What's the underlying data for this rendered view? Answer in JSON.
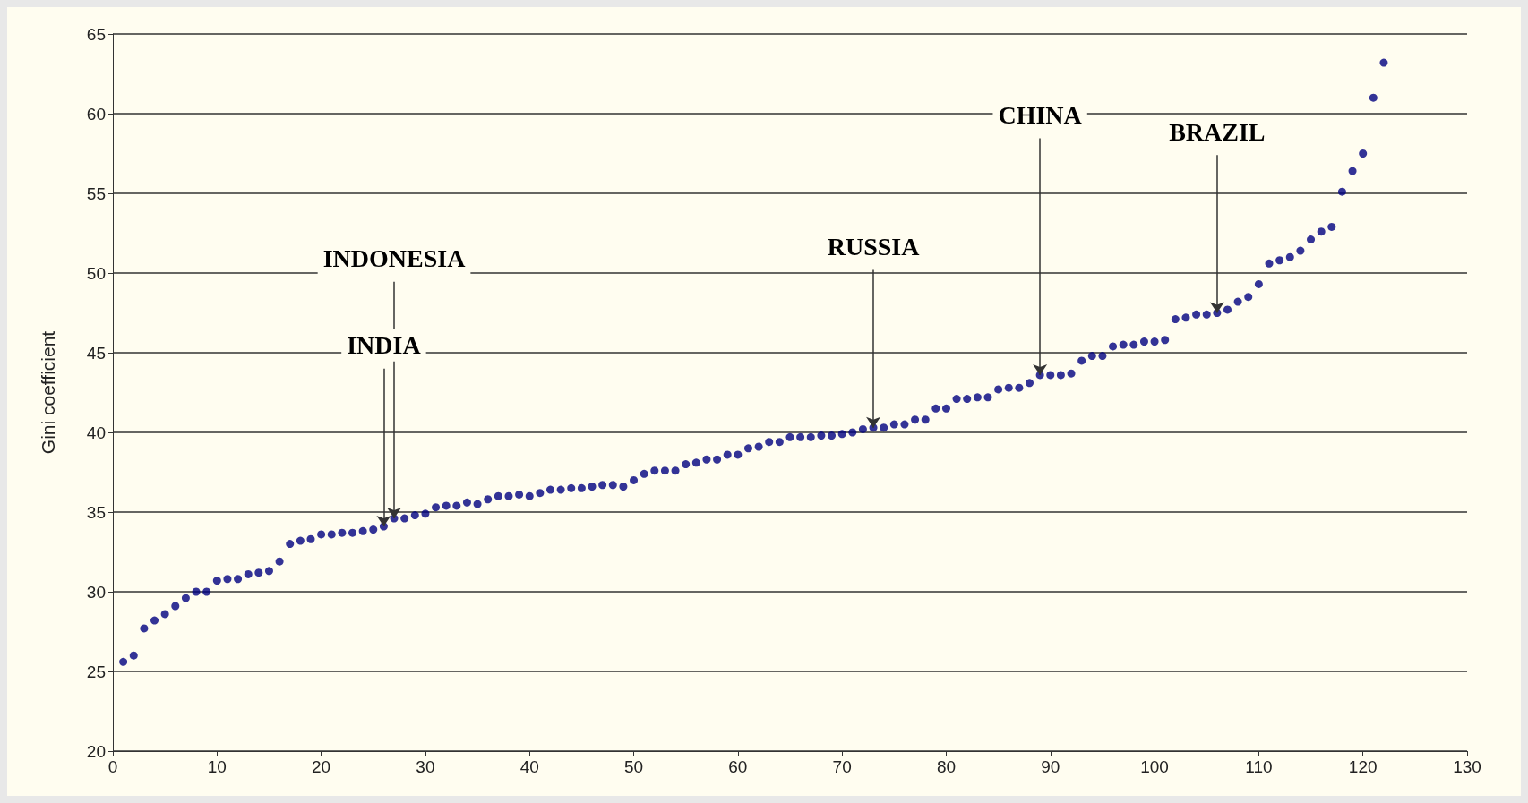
{
  "chart_data": {
    "type": "scatter",
    "ylabel": "Gini coefficient",
    "marker": "circle",
    "grid": "y",
    "xlim": [
      0,
      130
    ],
    "xticks": [
      0,
      10,
      20,
      30,
      40,
      50,
      60,
      70,
      80,
      90,
      100,
      110,
      120,
      130
    ],
    "ylim": [
      20,
      65
    ],
    "yticks": [
      20,
      25,
      30,
      35,
      40,
      45,
      50,
      55,
      60,
      65
    ],
    "x": [
      1,
      2,
      3,
      4,
      5,
      6,
      7,
      8,
      9,
      10,
      11,
      12,
      13,
      14,
      15,
      16,
      17,
      18,
      19,
      20,
      21,
      22,
      23,
      24,
      25,
      26,
      27,
      28,
      29,
      30,
      31,
      32,
      33,
      34,
      35,
      36,
      37,
      38,
      39,
      40,
      41,
      42,
      43,
      44,
      45,
      46,
      47,
      48,
      49,
      50,
      51,
      52,
      53,
      54,
      55,
      56,
      57,
      58,
      59,
      60,
      61,
      62,
      63,
      64,
      65,
      66,
      67,
      68,
      69,
      70,
      71,
      72,
      73,
      74,
      75,
      76,
      77,
      78,
      79,
      80,
      81,
      82,
      83,
      84,
      85,
      86,
      87,
      88,
      89,
      90,
      91,
      92,
      93,
      94,
      95,
      96,
      97,
      98,
      99,
      100,
      101,
      102,
      103,
      104,
      105,
      106,
      107,
      108,
      109,
      110,
      111,
      112,
      113,
      114,
      115,
      116,
      117,
      118,
      119,
      120,
      121,
      122
    ],
    "series": [
      {
        "color": "#000080",
        "values": [
          25.6,
          26.0,
          27.7,
          28.2,
          28.6,
          29.1,
          29.6,
          30.0,
          30.0,
          30.7,
          30.8,
          30.8,
          31.1,
          31.2,
          31.3,
          31.9,
          33.0,
          33.2,
          33.3,
          33.6,
          33.6,
          33.7,
          33.7,
          33.8,
          33.9,
          34.1,
          34.6,
          34.6,
          34.8,
          34.9,
          35.3,
          35.4,
          35.4,
          35.6,
          35.5,
          35.8,
          36.0,
          36.0,
          36.1,
          36.0,
          36.2,
          36.4,
          36.4,
          36.5,
          36.5,
          36.6,
          36.7,
          36.7,
          36.6,
          37.0,
          37.4,
          37.6,
          37.6,
          37.6,
          38.0,
          38.1,
          38.3,
          38.3,
          38.6,
          38.6,
          39.0,
          39.1,
          39.4,
          39.4,
          39.7,
          39.7,
          39.7,
          39.8,
          39.8,
          39.9,
          40.0,
          40.2,
          40.3,
          40.3,
          40.5,
          40.5,
          40.8,
          40.8,
          41.5,
          41.5,
          42.1,
          42.1,
          42.2,
          42.2,
          42.7,
          42.8,
          42.8,
          43.1,
          43.6,
          43.6,
          43.6,
          43.7,
          44.5,
          44.8,
          44.8,
          45.4,
          45.5,
          45.5,
          45.7,
          45.7,
          45.8,
          47.1,
          47.2,
          47.4,
          47.4,
          47.5,
          47.7,
          48.2,
          48.5,
          49.3,
          50.6,
          50.8,
          51.0,
          51.4,
          52.1,
          52.6,
          52.9,
          55.1,
          56.4,
          57.5,
          61.0,
          63.2
        ]
      }
    ],
    "annotations": [
      {
        "text": "INDIA",
        "x": 26,
        "y": 34.1
      },
      {
        "text": "INDONESIA",
        "x": 27,
        "y": 34.6
      },
      {
        "text": "RUSSIA",
        "x": 73,
        "y": 40.3
      },
      {
        "text": "CHINA",
        "x": 89,
        "y": 43.6
      },
      {
        "text": "BRAZIL",
        "x": 106,
        "y": 47.5
      }
    ]
  }
}
